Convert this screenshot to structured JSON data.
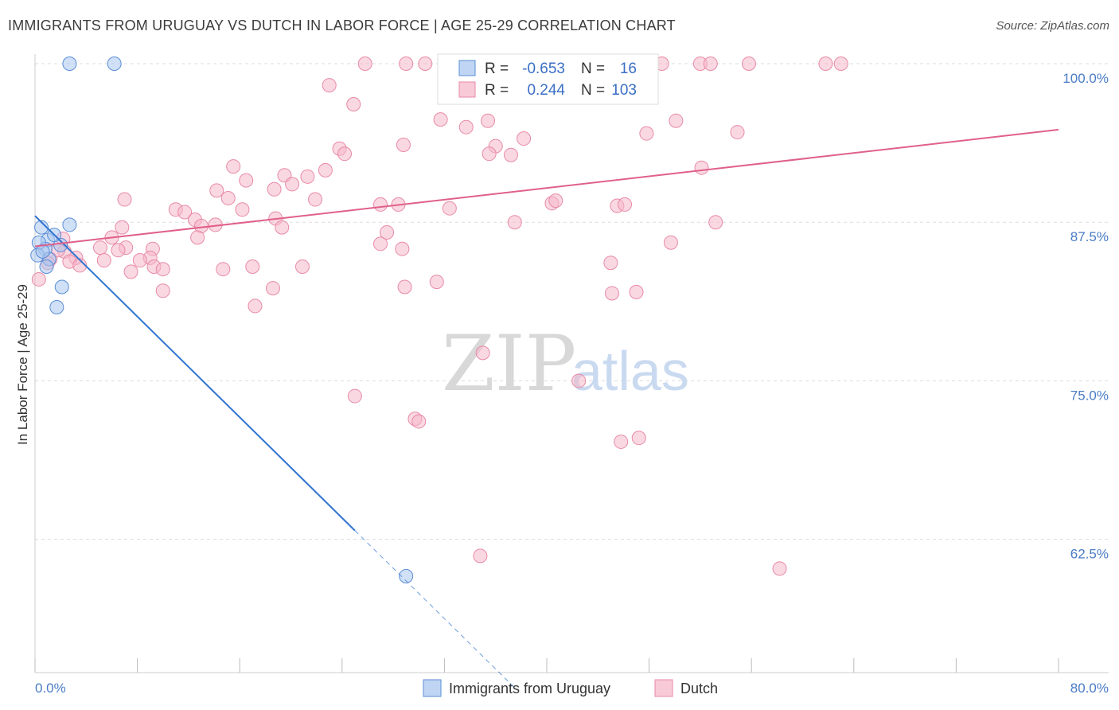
{
  "title": "IMMIGRANTS FROM URUGUAY VS DUTCH IN LABOR FORCE | AGE 25-29 CORRELATION CHART",
  "source": "Source: ZipAtlas.com",
  "watermark": {
    "zip": "ZIP",
    "atlas": "atlas"
  },
  "colors": {
    "uruguay_fill": "#a9c7ef",
    "uruguay_stroke": "#5b8ed6",
    "uruguay_line": "#2f74d0",
    "dutch_fill": "#f6b8cb",
    "dutch_stroke": "#e88aa8",
    "dutch_line": "#e0608a",
    "tick_label": "#4a7cc6",
    "grid": "#dddddd"
  },
  "legend": {
    "r_label": "R =",
    "n_label": "N =",
    "rows": [
      {
        "r": "-0.653",
        "n": "16"
      },
      {
        "r": "0.244",
        "n": "103"
      }
    ]
  },
  "chart_data": {
    "type": "scatter",
    "title": "IMMIGRANTS FROM URUGUAY VS DUTCH IN LABOR FORCE | AGE 25-29 CORRELATION CHART",
    "xlabel": "",
    "ylabel": "In Labor Force | Age 25-29",
    "xlim": [
      0,
      80
    ],
    "ylim": [
      52,
      100
    ],
    "x_tick_labels": [
      "0.0%",
      "80.0%"
    ],
    "y_ticks": [
      62.5,
      75.0,
      87.5,
      100.0
    ],
    "y_tick_labels": [
      "62.5%",
      "75.0%",
      "87.5%",
      "100.0%"
    ],
    "grid": true,
    "legend_position": "top-center",
    "series": [
      {
        "name": "Immigrants from Uruguay",
        "points": [
          [
            2.7,
            100
          ],
          [
            6.2,
            100
          ],
          [
            0.5,
            87.1
          ],
          [
            1.0,
            86.1
          ],
          [
            2.0,
            85.7
          ],
          [
            2.7,
            87.3
          ],
          [
            1.5,
            86.5
          ],
          [
            0.8,
            85.4
          ],
          [
            0.3,
            85.9
          ],
          [
            1.1,
            84.6
          ],
          [
            0.2,
            84.9
          ],
          [
            0.9,
            84.0
          ],
          [
            2.1,
            82.4
          ],
          [
            1.7,
            80.8
          ],
          [
            29.0,
            59.6
          ],
          [
            0.6,
            85.2
          ]
        ],
        "trend": {
          "x": [
            0,
            25.0
          ],
          "y": [
            88.0,
            63.2
          ]
        },
        "trend_extension": {
          "x": [
            25.0,
            37.5
          ],
          "y": [
            63.2,
            50.8
          ]
        }
      },
      {
        "name": "Dutch",
        "points": [
          [
            25.8,
            100
          ],
          [
            29.0,
            100
          ],
          [
            30.5,
            100
          ],
          [
            33.0,
            100
          ],
          [
            35.0,
            100
          ],
          [
            33.2,
            100
          ],
          [
            49.0,
            100
          ],
          [
            52.0,
            100
          ],
          [
            52.8,
            100
          ],
          [
            55.8,
            100
          ],
          [
            61.8,
            100
          ],
          [
            63.0,
            100
          ],
          [
            23.0,
            98.3
          ],
          [
            24.9,
            96.8
          ],
          [
            31.7,
            95.6
          ],
          [
            33.7,
            95.0
          ],
          [
            35.4,
            95.5
          ],
          [
            50.1,
            95.5
          ],
          [
            47.8,
            94.5
          ],
          [
            54.9,
            94.6
          ],
          [
            28.8,
            93.6
          ],
          [
            36.0,
            93.5
          ],
          [
            38.2,
            94.1
          ],
          [
            35.5,
            92.9
          ],
          [
            37.2,
            92.8
          ],
          [
            23.8,
            93.3
          ],
          [
            24.2,
            92.9
          ],
          [
            22.7,
            91.6
          ],
          [
            15.5,
            91.9
          ],
          [
            19.5,
            91.2
          ],
          [
            20.1,
            90.5
          ],
          [
            21.3,
            91.1
          ],
          [
            16.5,
            90.8
          ],
          [
            18.7,
            90.1
          ],
          [
            52.1,
            91.8
          ],
          [
            14.2,
            90.0
          ],
          [
            15.1,
            89.4
          ],
          [
            21.9,
            89.3
          ],
          [
            27.0,
            88.9
          ],
          [
            28.4,
            88.9
          ],
          [
            16.2,
            88.5
          ],
          [
            11.0,
            88.5
          ],
          [
            11.7,
            88.3
          ],
          [
            12.5,
            87.7
          ],
          [
            13.0,
            87.2
          ],
          [
            14.1,
            87.3
          ],
          [
            18.8,
            87.8
          ],
          [
            19.3,
            87.1
          ],
          [
            45.5,
            88.8
          ],
          [
            40.4,
            89.0
          ],
          [
            46.1,
            88.9
          ],
          [
            40.7,
            89.2
          ],
          [
            37.5,
            87.5
          ],
          [
            7.0,
            89.3
          ],
          [
            32.4,
            88.6
          ],
          [
            6.8,
            87.1
          ],
          [
            6.0,
            86.3
          ],
          [
            12.7,
            86.3
          ],
          [
            27.5,
            86.7
          ],
          [
            27.0,
            85.8
          ],
          [
            28.7,
            85.4
          ],
          [
            7.1,
            85.5
          ],
          [
            9.2,
            85.4
          ],
          [
            6.5,
            85.3
          ],
          [
            5.1,
            85.5
          ],
          [
            2.3,
            85.2
          ],
          [
            3.2,
            84.7
          ],
          [
            2.7,
            84.4
          ],
          [
            3.5,
            84.1
          ],
          [
            5.4,
            84.5
          ],
          [
            9.0,
            84.7
          ],
          [
            9.3,
            84.0
          ],
          [
            8.2,
            84.5
          ],
          [
            10.0,
            83.8
          ],
          [
            14.7,
            83.8
          ],
          [
            17.0,
            84.0
          ],
          [
            20.9,
            84.0
          ],
          [
            45.0,
            84.3
          ],
          [
            49.7,
            85.9
          ],
          [
            53.2,
            87.5
          ],
          [
            7.5,
            83.6
          ],
          [
            18.6,
            82.3
          ],
          [
            28.9,
            82.4
          ],
          [
            31.4,
            82.8
          ],
          [
            10.0,
            82.1
          ],
          [
            45.1,
            81.9
          ],
          [
            47.0,
            82.0
          ],
          [
            17.2,
            80.9
          ],
          [
            35.0,
            77.2
          ],
          [
            42.5,
            75.0
          ],
          [
            25.0,
            73.8
          ],
          [
            29.7,
            72.0
          ],
          [
            30.0,
            71.8
          ],
          [
            47.2,
            70.5
          ],
          [
            45.8,
            70.2
          ],
          [
            34.8,
            61.2
          ],
          [
            58.2,
            60.2
          ],
          [
            0.3,
            83.0
          ],
          [
            1.2,
            84.6
          ],
          [
            1.8,
            85.3
          ],
          [
            2.2,
            86.2
          ],
          [
            1.0,
            84.3
          ],
          [
            33.1,
            100
          ]
        ],
        "trend": {
          "x": [
            0,
            80
          ],
          "y": [
            85.6,
            94.8
          ]
        }
      }
    ]
  },
  "bottom_legend": [
    {
      "label": "Immigrants from Uruguay"
    },
    {
      "label": "Dutch"
    }
  ]
}
